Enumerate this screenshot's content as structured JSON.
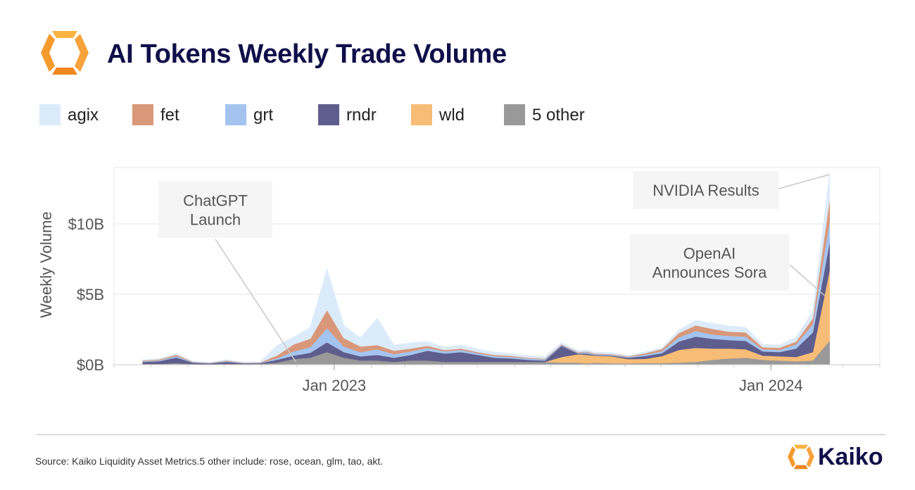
{
  "header": {
    "title": "AI Tokens Weekly Trade Volume"
  },
  "colors": {
    "agix": "#dcebfa",
    "fet": "#d9987a",
    "grt": "#a4c4ef",
    "rndr": "#5e5e8e",
    "wld": "#f7bc76",
    "other": "#999999",
    "title": "#0f0f4a",
    "logo_light": "#fbb442",
    "logo_dark": "#f0861f"
  },
  "icons": {
    "header_logo": "kaiko-logo-icon",
    "footer_logo": "kaiko-wordmark-icon"
  },
  "footer": {
    "source": "Source: Kaiko Liquidity Asset Metrics.5 other include: rose, ocean, glm, tao, akt.",
    "brand": "Kaiko"
  },
  "chart_data": {
    "type": "area",
    "stacked": true,
    "title": "AI Tokens Weekly Trade Volume",
    "ylabel": "Weekly Volume",
    "xlabel": "",
    "ylim": [
      0,
      14
    ],
    "y_unit": "$B",
    "yticks": [
      {
        "value": 0,
        "label": "$0B"
      },
      {
        "value": 5,
        "label": "$5B"
      },
      {
        "value": 10,
        "label": "$10B"
      }
    ],
    "xlim": [
      "2022-07-01",
      "2024-04-01"
    ],
    "xticks": [
      {
        "value": "2023-01-01",
        "label": "Jan 2023"
      },
      {
        "value": "2024-01-01",
        "label": "Jan 2024"
      }
    ],
    "grid": "horizontal",
    "legend_position": "top",
    "x": [
      "2022-07-25",
      "2022-08-08",
      "2022-08-22",
      "2022-09-05",
      "2022-09-19",
      "2022-10-03",
      "2022-10-17",
      "2022-10-31",
      "2022-11-14",
      "2022-11-28",
      "2022-12-12",
      "2022-12-26",
      "2023-01-09",
      "2023-01-23",
      "2023-02-06",
      "2023-02-20",
      "2023-03-06",
      "2023-03-20",
      "2023-04-03",
      "2023-04-17",
      "2023-05-01",
      "2023-05-15",
      "2023-05-29",
      "2023-06-12",
      "2023-06-26",
      "2023-07-10",
      "2023-07-24",
      "2023-07-31",
      "2023-08-07",
      "2023-08-21",
      "2023-09-04",
      "2023-09-18",
      "2023-10-02",
      "2023-10-16",
      "2023-10-30",
      "2023-11-13",
      "2023-11-27",
      "2023-12-11",
      "2023-12-25",
      "2024-01-08",
      "2024-01-22",
      "2024-02-05",
      "2024-02-19"
    ],
    "series": [
      {
        "name": "5 other",
        "key": "other",
        "values": [
          0.05,
          0.06,
          0.12,
          0.05,
          0.04,
          0.06,
          0.05,
          0.06,
          0.15,
          0.4,
          0.5,
          0.9,
          0.5,
          0.3,
          0.3,
          0.2,
          0.3,
          0.3,
          0.2,
          0.2,
          0.2,
          0.2,
          0.2,
          0.2,
          0.2,
          0.15,
          0.15,
          0.1,
          0.15,
          0.1,
          0.1,
          0.12,
          0.12,
          0.15,
          0.2,
          0.35,
          0.45,
          0.5,
          0.35,
          0.3,
          0.25,
          0.3,
          1.7
        ]
      },
      {
        "name": "wld",
        "key": "wld",
        "values": [
          0,
          0,
          0,
          0,
          0,
          0,
          0,
          0,
          0,
          0,
          0,
          0,
          0,
          0,
          0,
          0,
          0,
          0,
          0,
          0,
          0,
          0,
          0,
          0,
          0,
          0.4,
          0.6,
          0.6,
          0.5,
          0.5,
          0.3,
          0.3,
          0.5,
          0.9,
          1.0,
          0.8,
          0.7,
          0.6,
          0.3,
          0.3,
          0.3,
          0.6,
          5.0
        ]
      },
      {
        "name": "rndr",
        "key": "rndr",
        "values": [
          0.15,
          0.2,
          0.4,
          0.1,
          0.06,
          0.15,
          0.06,
          0.05,
          0.2,
          0.25,
          0.35,
          0.7,
          0.4,
          0.3,
          0.4,
          0.3,
          0.4,
          0.7,
          0.6,
          0.7,
          0.5,
          0.3,
          0.25,
          0.15,
          0.1,
          0.8,
          0.05,
          0.1,
          0.05,
          0.05,
          0.1,
          0.2,
          0.2,
          0.6,
          0.8,
          0.7,
          0.6,
          0.6,
          0.3,
          0.3,
          0.6,
          1.4,
          2.0
        ]
      },
      {
        "name": "grt",
        "key": "grt",
        "values": [
          0.05,
          0.06,
          0.1,
          0.03,
          0.02,
          0.05,
          0.02,
          0.03,
          0.1,
          0.3,
          0.4,
          1.0,
          0.4,
          0.3,
          0.4,
          0.25,
          0.25,
          0.2,
          0.15,
          0.15,
          0.12,
          0.12,
          0.1,
          0.1,
          0.08,
          0.05,
          0.05,
          0.1,
          0.05,
          0.05,
          0.05,
          0.1,
          0.15,
          0.3,
          0.4,
          0.3,
          0.3,
          0.3,
          0.15,
          0.15,
          0.3,
          0.6,
          1.5
        ]
      },
      {
        "name": "fet",
        "key": "fet",
        "values": [
          0.05,
          0.06,
          0.1,
          0.03,
          0.02,
          0.05,
          0.02,
          0.03,
          0.2,
          0.5,
          0.6,
          1.3,
          0.6,
          0.4,
          0.3,
          0.25,
          0.2,
          0.15,
          0.1,
          0.1,
          0.08,
          0.08,
          0.08,
          0.05,
          0.05,
          0.05,
          0.05,
          0.05,
          0.05,
          0.05,
          0.05,
          0.1,
          0.15,
          0.3,
          0.4,
          0.4,
          0.3,
          0.3,
          0.15,
          0.15,
          0.2,
          0.4,
          1.5
        ]
      },
      {
        "name": "agix",
        "key": "agix",
        "values": [
          0.05,
          0.06,
          0.08,
          0.03,
          0.02,
          0.05,
          0.03,
          0.03,
          0.7,
          0.5,
          0.8,
          2.9,
          0.9,
          0.6,
          1.9,
          0.4,
          0.4,
          0.3,
          0.2,
          0.25,
          0.2,
          0.2,
          0.15,
          0.15,
          0.15,
          0.1,
          0.1,
          0.1,
          0.1,
          0.1,
          0.05,
          0.1,
          0.1,
          0.2,
          0.35,
          0.4,
          0.4,
          0.35,
          0.2,
          0.2,
          0.3,
          0.5,
          1.8
        ]
      }
    ],
    "annotations": [
      {
        "text_lines": [
          "ChatGPT",
          "Launch"
        ],
        "x": "2022-11-30",
        "y": 0.2
      },
      {
        "text_lines": [
          "NVIDIA Results"
        ],
        "x": "2024-02-19",
        "y": 13.5
      },
      {
        "text_lines": [
          "OpenAI",
          "Announces Sora"
        ],
        "x": "2024-02-15",
        "y": 4.9
      }
    ]
  }
}
